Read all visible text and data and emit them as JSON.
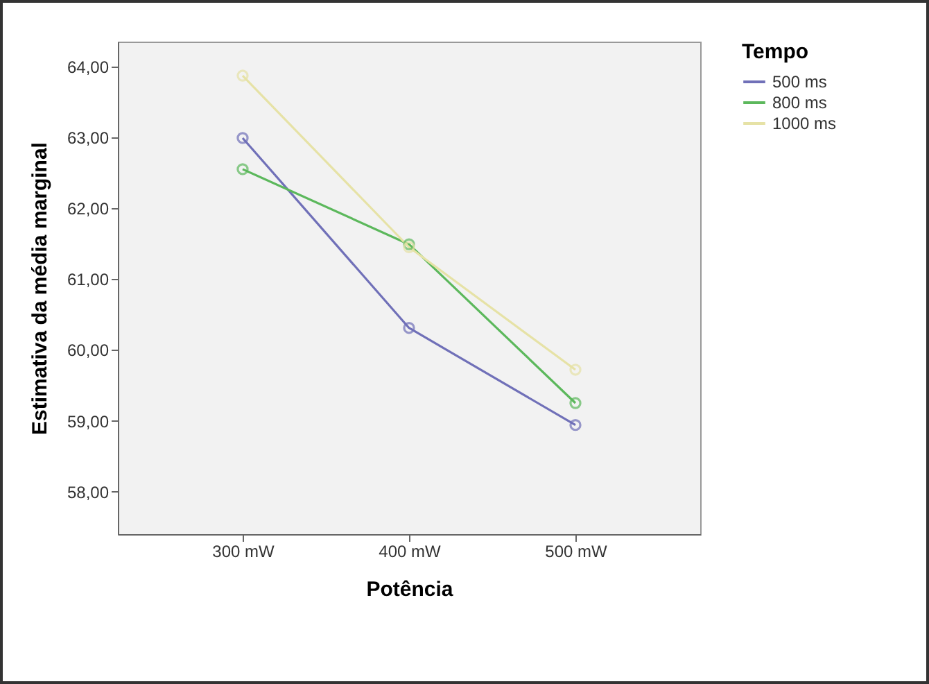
{
  "chart_data": {
    "type": "line",
    "xlabel": "Potência",
    "ylabel": "Estimativa da média marginal",
    "legend_title": "Tempo",
    "categories": [
      "300 mW",
      "400 mW",
      "500 mW"
    ],
    "series": [
      {
        "name": "500 ms",
        "color": "#7070b8",
        "values": [
          62.99,
          60.31,
          58.94
        ]
      },
      {
        "name": "800 ms",
        "color": "#5cb85c",
        "values": [
          62.55,
          61.49,
          59.25
        ]
      },
      {
        "name": "1000 ms",
        "color": "#e6e2a6",
        "values": [
          63.87,
          61.45,
          59.72
        ]
      }
    ],
    "ylim": [
      57.4,
      64.35
    ],
    "yticks": [
      {
        "value": 58,
        "label": "58,00"
      },
      {
        "value": 59,
        "label": "59,00"
      },
      {
        "value": 60,
        "label": "60,00"
      },
      {
        "value": 61,
        "label": "61,00"
      },
      {
        "value": 62,
        "label": "62,00"
      },
      {
        "value": 63,
        "label": "63,00"
      },
      {
        "value": 64,
        "label": "64,00"
      }
    ],
    "marker": "circle",
    "legend": "top right",
    "grid": false
  }
}
